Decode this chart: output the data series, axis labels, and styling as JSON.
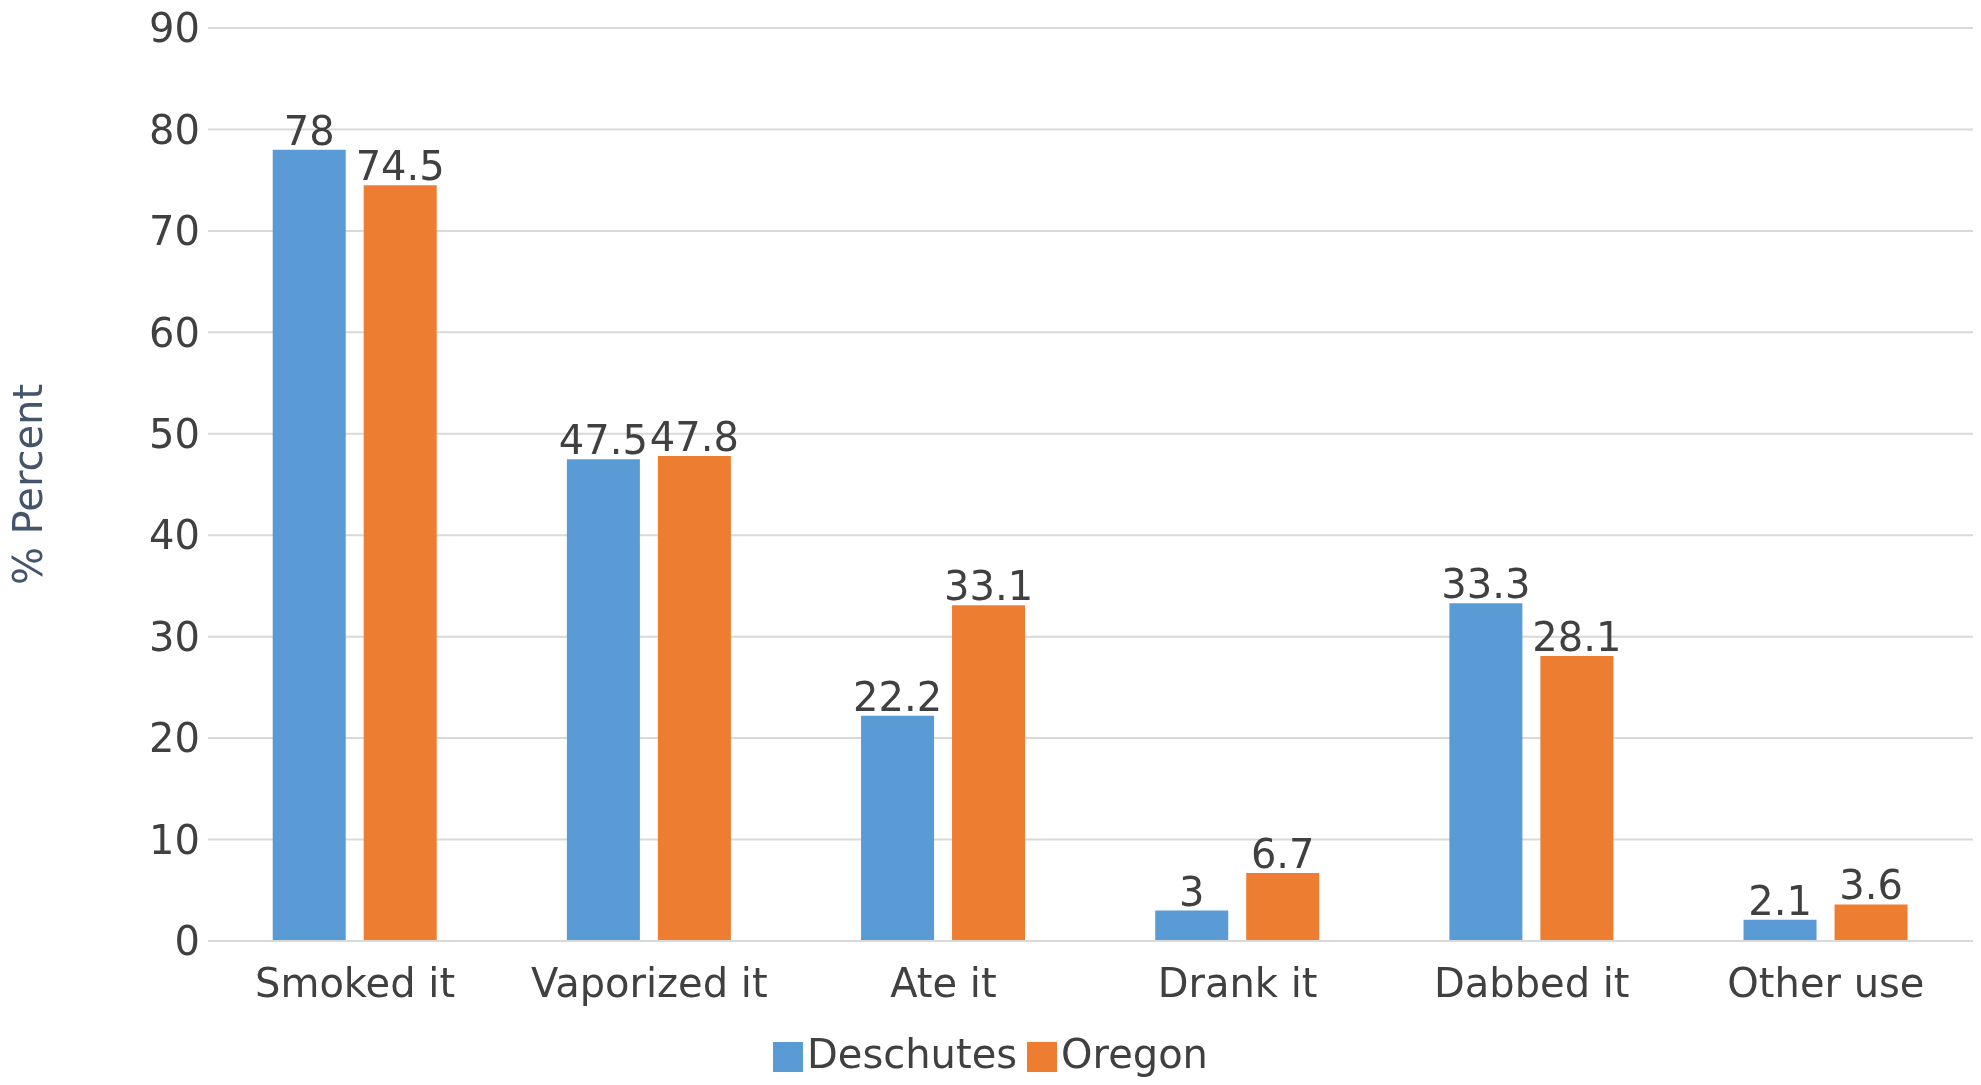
{
  "chart_data": {
    "type": "bar",
    "ylabel": "% Percent",
    "categories": [
      "Smoked it",
      "Vaporized it",
      "Ate it",
      "Drank it",
      "Dabbed it",
      "Other use"
    ],
    "series": [
      {
        "name": "Deschutes",
        "color": "#5b9bd5",
        "values": [
          78,
          47.5,
          22.2,
          3,
          33.3,
          2.1
        ]
      },
      {
        "name": "Oregon",
        "color": "#ed7d31",
        "values": [
          74.5,
          47.8,
          33.1,
          6.7,
          28.1,
          3.6
        ]
      }
    ],
    "ylim": [
      0,
      90
    ],
    "yticks": [
      0,
      10,
      20,
      30,
      40,
      50,
      60,
      70,
      80,
      90
    ],
    "grid": "y",
    "legend": "bottom",
    "data_labels": true
  }
}
